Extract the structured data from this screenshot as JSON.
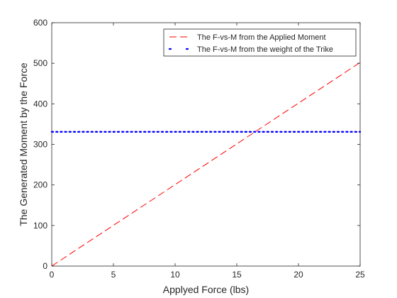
{
  "chart_data": {
    "type": "line",
    "title": "",
    "xlabel": "Applyed Force (lbs)",
    "ylabel": "The Generated Moment by the Force",
    "xlim": [
      0,
      25
    ],
    "ylim": [
      0,
      600
    ],
    "xticks": [
      0,
      5,
      10,
      15,
      20,
      25
    ],
    "yticks": [
      0,
      100,
      200,
      300,
      400,
      500,
      600
    ],
    "grid": false,
    "legend_position": "top-right",
    "series": [
      {
        "name": "The F-vs-M from the Applied Moment",
        "style": "dashed",
        "color": "#ff0000",
        "x": [
          0,
          25
        ],
        "y": [
          0,
          502
        ]
      },
      {
        "name": "The F-vs-M from the weight of the Trike",
        "style": "dotted",
        "color": "#0000ff",
        "x": [
          0,
          25
        ],
        "y": [
          331,
          331
        ]
      }
    ]
  }
}
